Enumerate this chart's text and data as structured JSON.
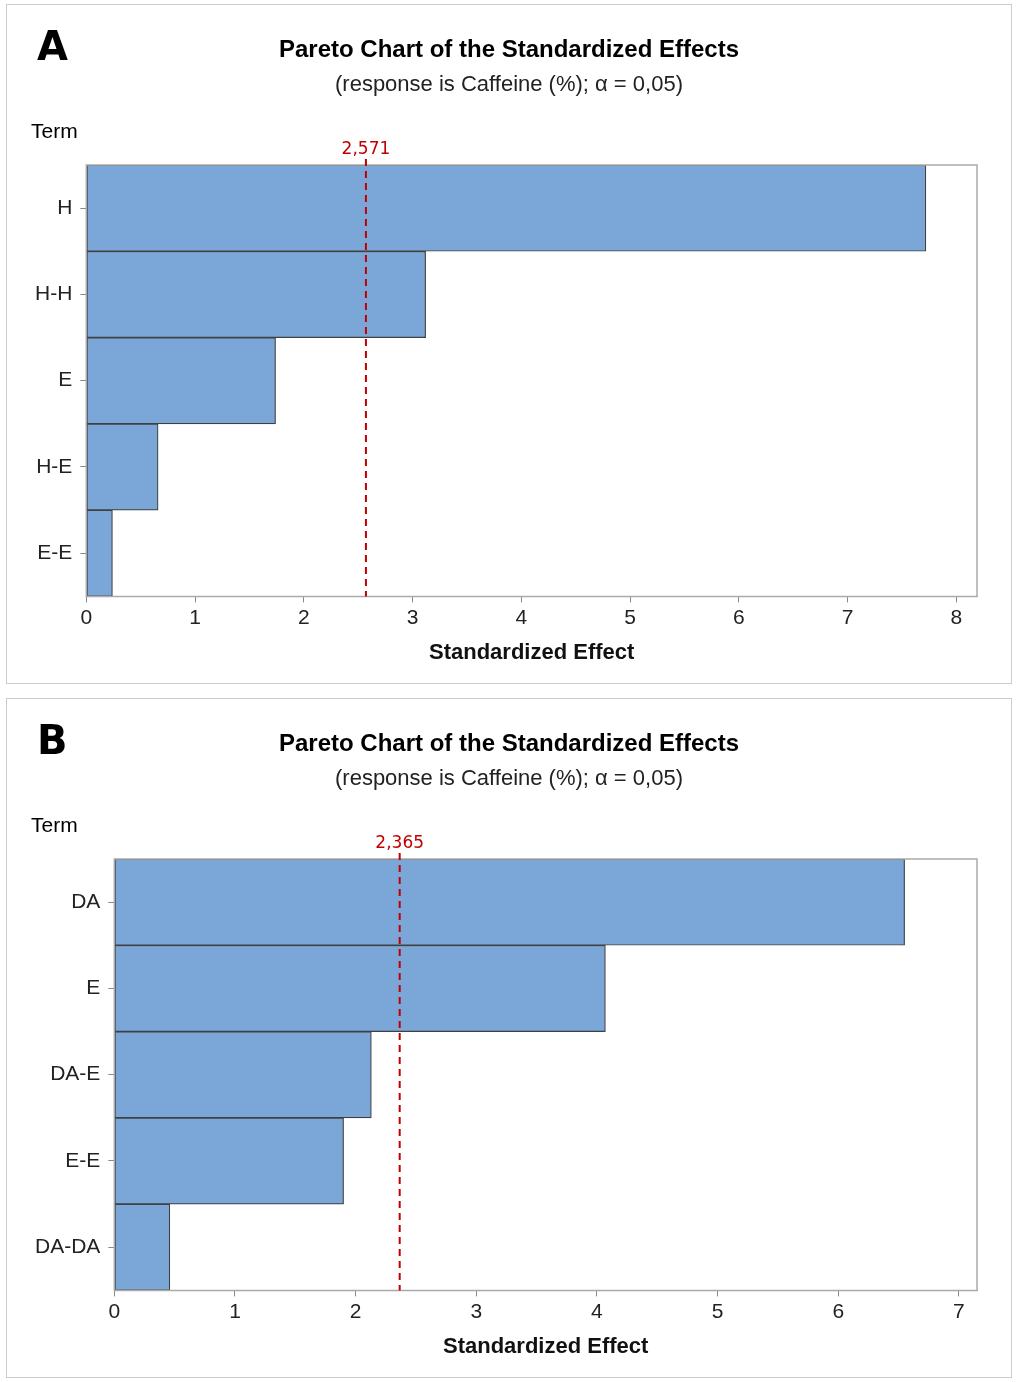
{
  "chart_data": [
    {
      "type": "bar",
      "orientation": "horizontal",
      "title": "Pareto Chart of the Standardized Effects",
      "subtitle": "(response is Caffeine (%); α = 0,05)",
      "ylabel": "Term",
      "xlabel": "Standardized Effect",
      "annotations": [
        "A"
      ],
      "categories": [
        "H",
        "H-H",
        "E",
        "H-E",
        "E-E"
      ],
      "values": [
        7.72,
        3.12,
        1.74,
        0.66,
        0.24
      ],
      "color": "#7ba7d8",
      "xlim": [
        0,
        8.19
      ],
      "xticks": [
        0,
        1,
        2,
        3,
        4,
        5,
        6,
        7,
        8
      ],
      "grid": false,
      "legend": false,
      "ref_lines": [
        {
          "axis": "x",
          "value": 2.571,
          "label": "2,571",
          "color": "#c00000",
          "line_style": "dashed"
        }
      ]
    },
    {
      "type": "bar",
      "orientation": "horizontal",
      "title": "Pareto Chart of the Standardized Effects",
      "subtitle": "(response is Caffeine (%); α = 0,05)",
      "ylabel": "Term",
      "xlabel": "Standardized Effect",
      "annotations": [
        "B"
      ],
      "categories": [
        "DA",
        "E",
        "DA-E",
        "E-E",
        "DA-DA"
      ],
      "values": [
        6.55,
        4.07,
        2.13,
        1.9,
        0.46
      ],
      "color": "#7ba7d8",
      "xlim": [
        0,
        7.15
      ],
      "xticks": [
        0,
        1,
        2,
        3,
        4,
        5,
        6,
        7
      ],
      "grid": false,
      "legend": false,
      "ref_lines": [
        {
          "axis": "x",
          "value": 2.365,
          "label": "2,365",
          "color": "#c00000",
          "line_style": "dashed"
        }
      ]
    }
  ]
}
